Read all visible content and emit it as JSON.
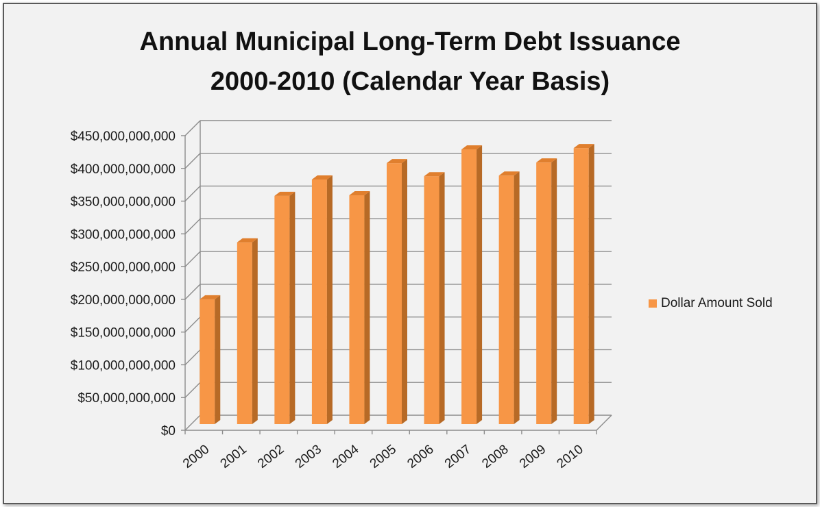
{
  "chart_data": {
    "type": "bar",
    "title_lines": [
      "Annual Municipal Long-Term Debt Issuance",
      "2000-2010 (Calendar Year Basis)"
    ],
    "categories": [
      "2000",
      "2001",
      "2002",
      "2003",
      "2004",
      "2005",
      "2006",
      "2007",
      "2008",
      "2009",
      "2010"
    ],
    "series": [
      {
        "name": "Dollar Amount Sold",
        "color": "#f79646",
        "values": [
          200000000000,
          287000000000,
          358000000000,
          383000000000,
          359000000000,
          408000000000,
          388000000000,
          429000000000,
          389000000000,
          409000000000,
          431000000000
        ]
      }
    ],
    "yticks": [
      "$0",
      "$50,000,000,000",
      "$100,000,000,000",
      "$150,000,000,000",
      "$200,000,000,000",
      "$250,000,000,000",
      "$300,000,000,000",
      "$350,000,000,000",
      "$400,000,000,000",
      "$450,000,000,000"
    ],
    "ylim": [
      0,
      450000000000
    ],
    "grid": true,
    "legend_position": "right",
    "three_d": true
  }
}
